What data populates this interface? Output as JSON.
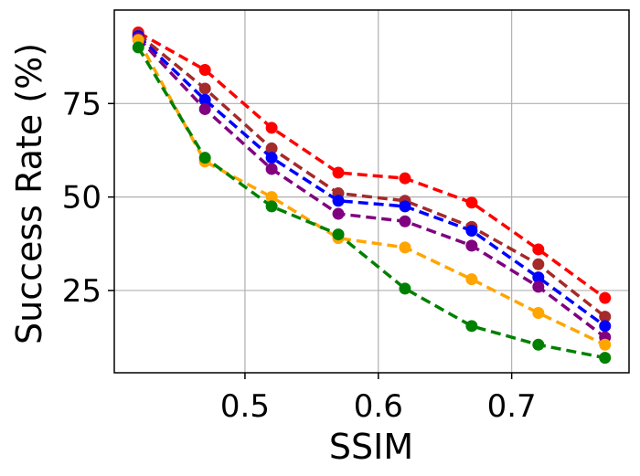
{
  "chart_data": {
    "type": "line",
    "title": "",
    "xlabel": "SSIM",
    "ylabel": "Success Rate (%)",
    "xlim": [
      0.402,
      0.788
    ],
    "ylim": [
      3,
      100
    ],
    "xticks": [
      0.5,
      0.6,
      0.7
    ],
    "xtick_labels": [
      "0.5",
      "0.6",
      "0.7"
    ],
    "yticks": [
      25,
      50,
      75
    ],
    "ytick_labels": [
      "25",
      "50",
      "75"
    ],
    "grid": true,
    "legend": "none",
    "x": [
      0.42,
      0.47,
      0.52,
      0.57,
      0.62,
      0.67,
      0.72,
      0.77
    ],
    "series": [
      {
        "color": "#ff0000",
        "values": [
          94,
          84,
          68.5,
          56.5,
          55,
          48.5,
          36,
          23
        ]
      },
      {
        "color": "#a52a2a",
        "values": [
          93.5,
          79,
          63,
          51,
          49,
          42,
          32,
          18
        ]
      },
      {
        "color": "#0000ff",
        "values": [
          93,
          76,
          60.5,
          49,
          47.5,
          41,
          28.5,
          15.5
        ]
      },
      {
        "color": "#800080",
        "values": [
          92.5,
          73.5,
          57.5,
          45.5,
          43.5,
          37,
          26,
          12.5
        ]
      },
      {
        "color": "#ffa500",
        "values": [
          92,
          59.5,
          50,
          39,
          36.5,
          28,
          19,
          10.5
        ]
      },
      {
        "color": "#008000",
        "values": [
          90,
          60.5,
          47.5,
          40,
          25.5,
          15.5,
          10.5,
          7
        ]
      }
    ]
  }
}
